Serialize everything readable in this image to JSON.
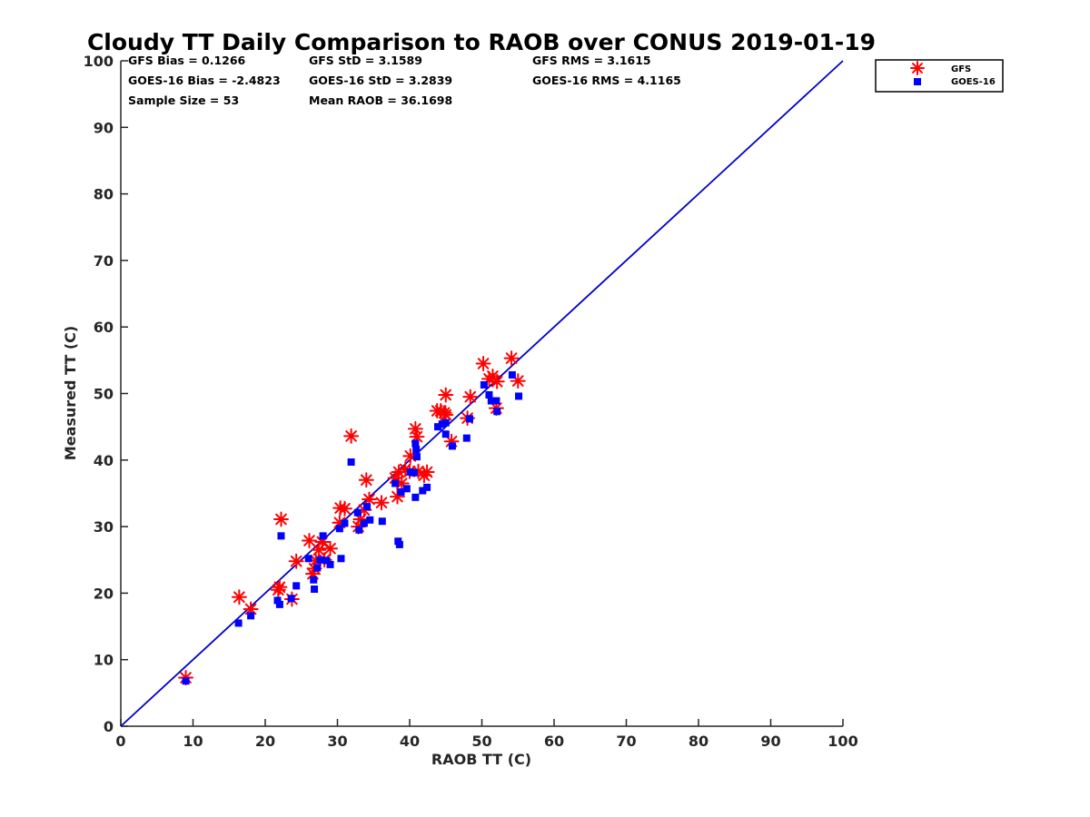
{
  "chart_data": {
    "type": "scatter",
    "title": "Cloudy TT Daily Comparison to RAOB over CONUS 2019-01-19",
    "xlabel": "RAOB TT (C)",
    "ylabel": "Measured TT (C)",
    "xlim": [
      0,
      100
    ],
    "ylim": [
      0,
      100
    ],
    "xticks": [
      "0",
      "10",
      "20",
      "30",
      "40",
      "50",
      "60",
      "70",
      "80",
      "90",
      "100"
    ],
    "yticks": [
      "0",
      "10",
      "20",
      "30",
      "40",
      "50",
      "60",
      "70",
      "80",
      "90",
      "100"
    ],
    "grid": false,
    "legend_position": "top-right outside",
    "stats": [
      "GFS Bias = 0.1266",
      "GFS StD = 3.1589",
      "GFS RMS = 3.1615",
      "GOES-16 Bias = -2.4823",
      "GOES-16 StD = 3.2839",
      "GOES-16 RMS = 4.1165",
      "Sample Size = 53",
      "Mean RAOB = 36.1698"
    ],
    "reference_line": {
      "from": [
        0,
        0
      ],
      "to": [
        100,
        100
      ],
      "color": "#0000cc"
    },
    "series": [
      {
        "name": "GFS",
        "marker": "asterisk",
        "color": "#ff0000",
        "points": [
          [
            9,
            7.3
          ],
          [
            16.4,
            19.4
          ],
          [
            18,
            17.6
          ],
          [
            21.8,
            20.5
          ],
          [
            22,
            20.9
          ],
          [
            22.2,
            31.1
          ],
          [
            23.7,
            19.1
          ],
          [
            24.3,
            24.8
          ],
          [
            26.1,
            27.9
          ],
          [
            26.6,
            22.9
          ],
          [
            26.8,
            23.7
          ],
          [
            27,
            24.9
          ],
          [
            27.4,
            26.5
          ],
          [
            27.9,
            27.7
          ],
          [
            28.2,
            25
          ],
          [
            29,
            26.7
          ],
          [
            30.3,
            30.6
          ],
          [
            30.4,
            32.8
          ],
          [
            31,
            32.7
          ],
          [
            31.9,
            43.6
          ],
          [
            32.9,
            30
          ],
          [
            33.2,
            31.1
          ],
          [
            33.7,
            32.5
          ],
          [
            34,
            37
          ],
          [
            34.4,
            34.1
          ],
          [
            36.1,
            33.6
          ],
          [
            38,
            37.3
          ],
          [
            38.3,
            34.5
          ],
          [
            38.5,
            38.2
          ],
          [
            38.9,
            36.5
          ],
          [
            39.4,
            38.6
          ],
          [
            40,
            38.3
          ],
          [
            40.1,
            40.6
          ],
          [
            40.8,
            44.7
          ],
          [
            41,
            43.5
          ],
          [
            41.2,
            38.3
          ],
          [
            42,
            37.7
          ],
          [
            42.4,
            38.2
          ],
          [
            43.8,
            47.4
          ],
          [
            44.3,
            47.4
          ],
          [
            45,
            49.8
          ],
          [
            45,
            46.8
          ],
          [
            45.8,
            42.8
          ],
          [
            48,
            46.3
          ],
          [
            48.4,
            49.5
          ],
          [
            50.2,
            54.5
          ],
          [
            51,
            52.2
          ],
          [
            51.5,
            52.6
          ],
          [
            52,
            47.8
          ],
          [
            52.1,
            51.8
          ],
          [
            54.1,
            55.3
          ],
          [
            55,
            51.9
          ],
          [
            44.8,
            47.1
          ]
        ]
      },
      {
        "name": "GOES-16",
        "marker": "square",
        "color": "#0000ff",
        "points": [
          [
            9,
            6.8
          ],
          [
            16.3,
            15.5
          ],
          [
            18,
            16.6
          ],
          [
            21.7,
            18.9
          ],
          [
            22,
            18.3
          ],
          [
            22.2,
            28.6
          ],
          [
            23.6,
            19.2
          ],
          [
            24.3,
            21.1
          ],
          [
            26,
            25.2
          ],
          [
            26.7,
            22
          ],
          [
            26.8,
            20.6
          ],
          [
            27.2,
            23.8
          ],
          [
            27.6,
            25
          ],
          [
            28,
            28.6
          ],
          [
            28.5,
            24.9
          ],
          [
            29,
            24.3
          ],
          [
            30.3,
            29.7
          ],
          [
            30.5,
            25.2
          ],
          [
            31,
            30.5
          ],
          [
            31.9,
            39.7
          ],
          [
            32.8,
            32.1
          ],
          [
            33,
            29.5
          ],
          [
            33.7,
            30.5
          ],
          [
            34.1,
            33
          ],
          [
            34.5,
            31
          ],
          [
            36.2,
            30.8
          ],
          [
            38,
            36.5
          ],
          [
            38.4,
            27.8
          ],
          [
            38.6,
            27.3
          ],
          [
            38.8,
            35.2
          ],
          [
            39.6,
            35.7
          ],
          [
            40.1,
            38.2
          ],
          [
            40.6,
            38.1
          ],
          [
            40.8,
            42.5
          ],
          [
            40.9,
            41.6
          ],
          [
            41,
            40.5
          ],
          [
            40.8,
            34.4
          ],
          [
            41.8,
            35.4
          ],
          [
            42.4,
            35.9
          ],
          [
            43.9,
            45
          ],
          [
            44.5,
            45.4
          ],
          [
            45,
            43.9
          ],
          [
            45,
            45.6
          ],
          [
            45.9,
            42.1
          ],
          [
            47.9,
            43.3
          ],
          [
            48.3,
            46.2
          ],
          [
            50.3,
            51.3
          ],
          [
            51,
            49.8
          ],
          [
            51.3,
            48.9
          ],
          [
            52,
            48.9
          ],
          [
            52.1,
            47.3
          ],
          [
            54.2,
            52.8
          ],
          [
            55.1,
            49.6
          ]
        ]
      }
    ]
  }
}
